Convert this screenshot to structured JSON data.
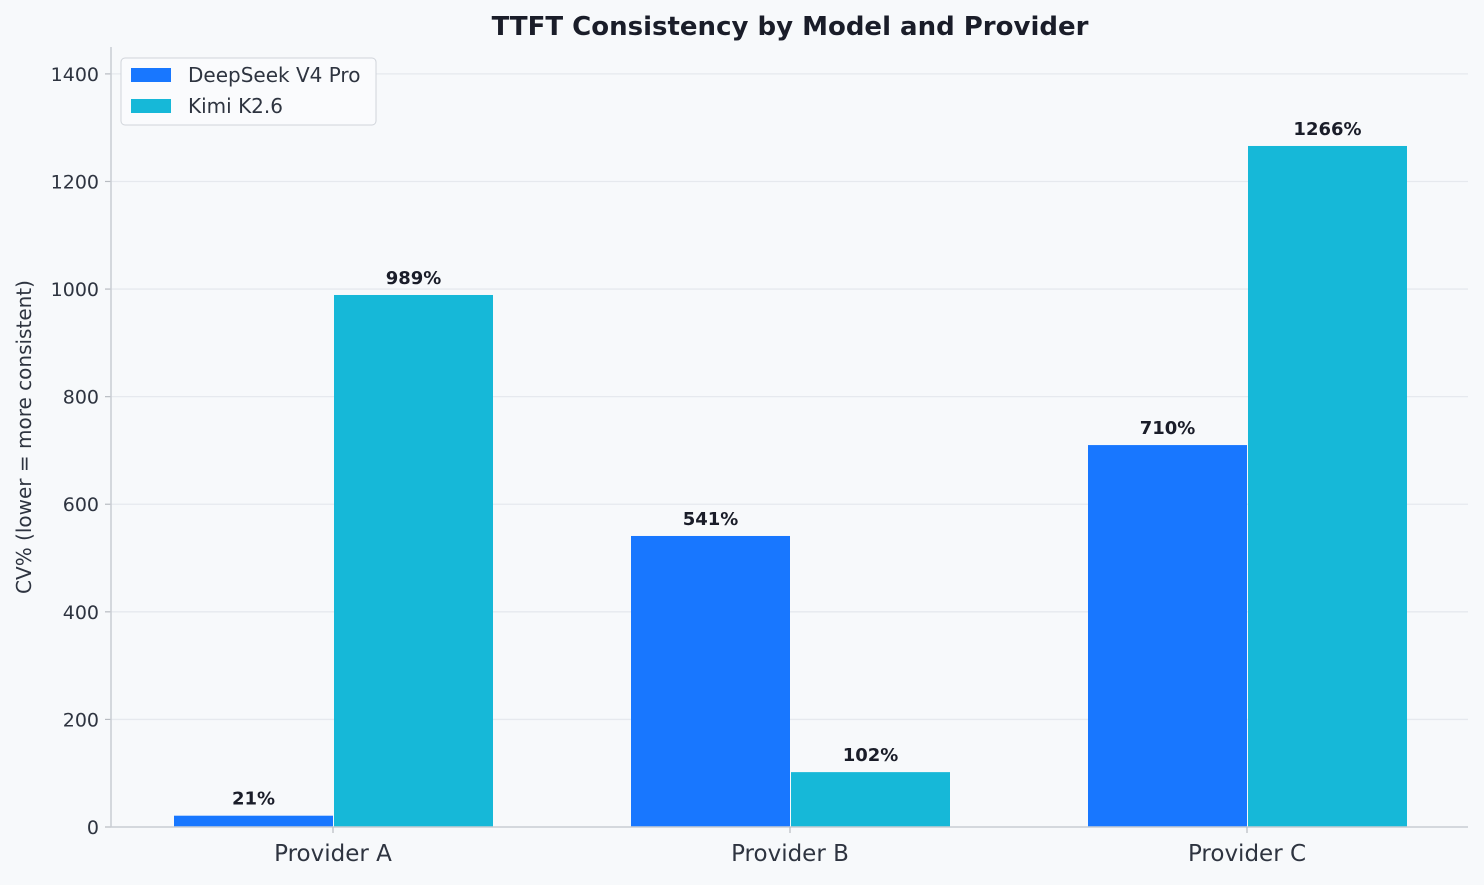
{
  "chart_data": {
    "type": "bar",
    "title": "TTFT Consistency by Model and Provider",
    "xlabel": "",
    "ylabel": "CV% (lower = more consistent)",
    "categories": [
      "Provider A",
      "Provider B",
      "Provider C"
    ],
    "series": [
      {
        "name": "DeepSeek V4 Pro",
        "values": [
          21,
          541,
          710
        ],
        "labels": [
          "21%",
          "541%",
          "710%"
        ],
        "color": "#1877ff"
      },
      {
        "name": "Kimi K2.6",
        "values": [
          989,
          102,
          1266
        ],
        "labels": [
          "989%",
          "102%",
          "1266%"
        ],
        "color": "#16b8d8"
      }
    ],
    "ylim": [
      0,
      1450
    ],
    "yticks": [
      0,
      200,
      400,
      600,
      800,
      1000,
      1200,
      1400
    ],
    "ytick_labels": [
      "0",
      "200",
      "400",
      "600",
      "800",
      "1000",
      "1200",
      "1400"
    ],
    "grid": true,
    "legend_position": "top-left",
    "colors": {
      "background": "#f7f9fb",
      "grid": "#e6e9ee",
      "axis": "#c9cdd3",
      "text": "#2e3440",
      "title": "#1a1d29"
    }
  }
}
